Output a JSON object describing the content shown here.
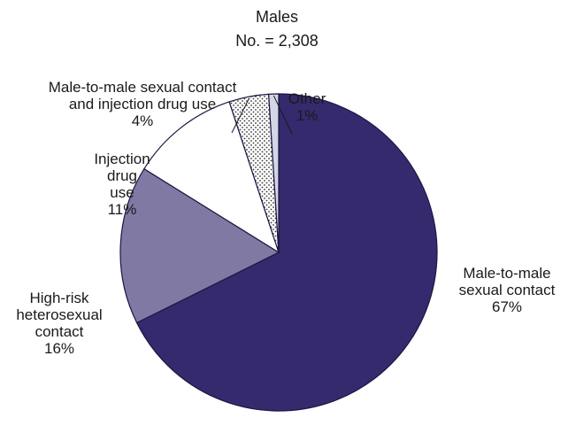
{
  "chart_data": {
    "type": "pie",
    "title": "Males",
    "subtitle": "No. = 2,308",
    "slices": [
      {
        "lines": [
          "Male-to-male",
          "sexual contact",
          "67%"
        ],
        "value": 67,
        "color": "#352a6e",
        "pattern": "none"
      },
      {
        "lines": [
          "High-risk",
          "heterosexual",
          "contact",
          "16%"
        ],
        "value": 16,
        "color": "#8079a3",
        "pattern": "none"
      },
      {
        "lines": [
          "Injection",
          "drug",
          "use",
          "11%"
        ],
        "value": 11,
        "color": "#ffffff",
        "pattern": "none"
      },
      {
        "lines": [
          "Male-to-male sexual contact",
          "and injection drug use",
          "4%"
        ],
        "value": 4,
        "color": "#ffffff",
        "pattern": "dots"
      },
      {
        "lines": [
          "Other",
          "1%"
        ],
        "value": 1,
        "color": "#d4d5e6",
        "pattern": "none"
      }
    ]
  }
}
